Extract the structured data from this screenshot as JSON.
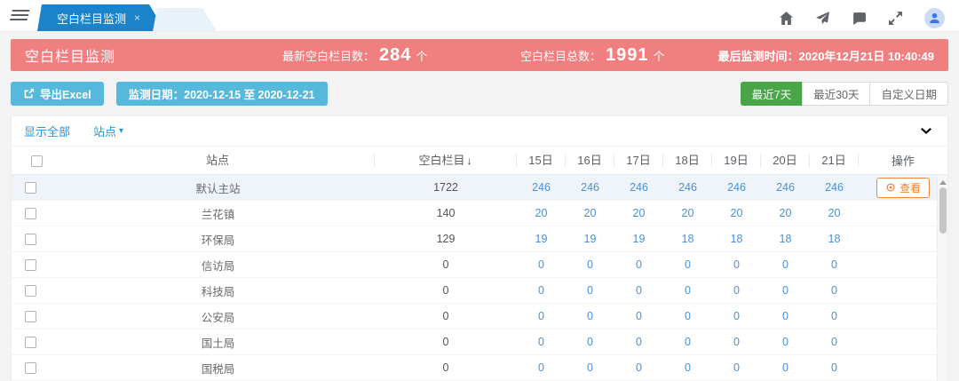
{
  "topbar": {
    "tab_label": "空白栏目监测",
    "tab_close": "×"
  },
  "banner": {
    "title": "空白栏目监测",
    "latest_label": "最新空白栏目数：",
    "latest_value": "284",
    "latest_unit": "个",
    "total_label": "空白栏目总数：",
    "total_value": "1991",
    "total_unit": "个",
    "time_text": "最后监测时间：2020年12月21日 10:40:49"
  },
  "toolbar": {
    "export_label": "导出Excel",
    "date_range_label": "监测日期：2020-12-15 至 2020-12-21",
    "range_buttons": [
      {
        "label": "最近7天",
        "active": true
      },
      {
        "label": "最近30天",
        "active": false
      },
      {
        "label": "自定义日期",
        "active": false
      }
    ]
  },
  "filters": {
    "show_all": "显示全部",
    "site_dropdown": "站点",
    "caret": "▾"
  },
  "table": {
    "site_header": "站点",
    "count_header": "空白栏目",
    "sort_icon": "↓",
    "day_headers": [
      "15日",
      "16日",
      "17日",
      "18日",
      "19日",
      "20日",
      "21日"
    ],
    "action_header": "操作",
    "view_label": "查看",
    "rows": [
      {
        "site": "默认主站",
        "total": "1722",
        "days": [
          "246",
          "246",
          "246",
          "246",
          "246",
          "246",
          "246"
        ],
        "action": "查看",
        "highlight": true
      },
      {
        "site": "兰花镇",
        "total": "140",
        "days": [
          "20",
          "20",
          "20",
          "20",
          "20",
          "20",
          "20"
        ]
      },
      {
        "site": "环保局",
        "total": "129",
        "days": [
          "19",
          "19",
          "19",
          "18",
          "18",
          "18",
          "18"
        ]
      },
      {
        "site": "信访局",
        "total": "0",
        "days": [
          "0",
          "0",
          "0",
          "0",
          "0",
          "0",
          "0"
        ]
      },
      {
        "site": "科技局",
        "total": "0",
        "days": [
          "0",
          "0",
          "0",
          "0",
          "0",
          "0",
          "0"
        ]
      },
      {
        "site": "公安局",
        "total": "0",
        "days": [
          "0",
          "0",
          "0",
          "0",
          "0",
          "0",
          "0"
        ]
      },
      {
        "site": "国土局",
        "total": "0",
        "days": [
          "0",
          "0",
          "0",
          "0",
          "0",
          "0",
          "0"
        ]
      },
      {
        "site": "国税局",
        "total": "0",
        "days": [
          "0",
          "0",
          "0",
          "0",
          "0",
          "0",
          "0"
        ]
      }
    ]
  },
  "colors": {
    "tab_blue": "#1a83c9",
    "banner_red": "#f08080",
    "button_cyan": "#56b8da",
    "active_green": "#48a648",
    "link_blue": "#1f9ae0",
    "day_value_blue": "#4a90d9",
    "action_orange": "#f0883a"
  }
}
